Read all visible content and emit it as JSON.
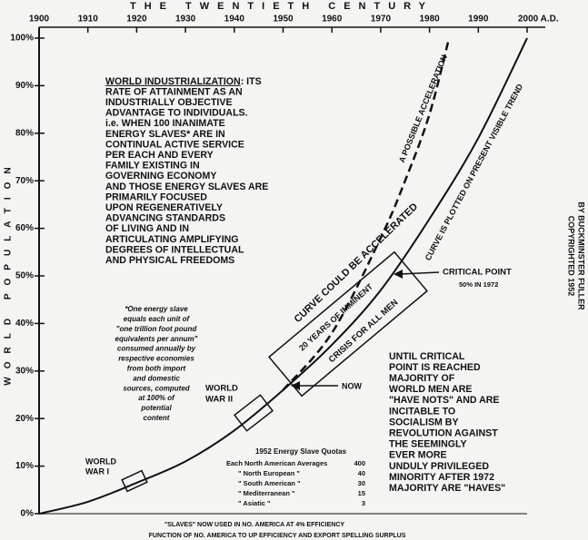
{
  "chart_data": {
    "type": "line",
    "title": "THE TWENTIETH CENTURY",
    "y_label": "WORLD POPULATION",
    "copyright": [
      "COPYRIGHTED 1952",
      "BY BUCKMINSTER FULLER"
    ],
    "xlim": [
      1900,
      2000
    ],
    "xticks": [
      1900,
      1910,
      1920,
      1930,
      1940,
      1950,
      1960,
      1970,
      1980,
      1990,
      {
        "value": 2000,
        "label": "2000 A.D."
      }
    ],
    "ylim": [
      0,
      100
    ],
    "yticks": [
      {
        "value": 0,
        "label": "0%"
      },
      {
        "value": 10,
        "label": "10%"
      },
      {
        "value": 20,
        "label": "20%"
      },
      {
        "value": 30,
        "label": "30%"
      },
      {
        "value": 40,
        "label": "40%"
      },
      {
        "value": 50,
        "label": "50%"
      },
      {
        "value": 60,
        "label": "60%"
      },
      {
        "value": 70,
        "label": "70%"
      },
      {
        "value": 80,
        "label": "80%"
      },
      {
        "value": 90,
        "label": "90%"
      },
      {
        "value": 100,
        "label": "100%"
      }
    ],
    "series": [
      {
        "name": "CURVE IS PLOTTED ON PRESENT VISIBLE TREND",
        "color": "#111111",
        "dashed": false,
        "x": [
          1900,
          1910,
          1920,
          1930,
          1940,
          1950,
          1960,
          1970,
          1980,
          1990,
          2000
        ],
        "values": [
          0,
          2.5,
          6.5,
          11,
          17.5,
          26,
          35.5,
          47,
          62,
          79,
          100
        ]
      },
      {
        "name": "A POSSIBLE ACCELERATION",
        "color": "#111111",
        "dashed": true,
        "x": [
          1950,
          1960,
          1970,
          1975,
          1980,
          1984
        ],
        "values": [
          26,
          38,
          58,
          70,
          84,
          100
        ]
      }
    ],
    "annotations": {
      "ww1": [
        "WORLD",
        "WAR I"
      ],
      "ww2": [
        "WORLD",
        "WAR II"
      ],
      "now": "NOW",
      "critical": [
        "CRITICAL POINT",
        "50% IN 1972"
      ],
      "accelerated": "CURVE COULD BE ACCELERATED",
      "crisis": [
        "20 YEARS OF IMMINENT",
        "CRISIS FOR ALL MEN"
      ],
      "main_heading": "WORLD INDUSTRIALIZATION",
      "main": [
        ": ITS",
        "RATE OF ATTAINMENT AS AN",
        "INDUSTRIALLY OBJECTIVE",
        "ADVANTAGE TO INDIVIDUALS.",
        "i.e. WHEN 100 INANIMATE",
        "ENERGY SLAVES* ARE IN",
        "CONTINUAL ACTIVE SERVICE",
        "PER EACH AND EVERY",
        "FAMILY EXISTING IN",
        "GOVERNING ECONOMY",
        "AND THOSE ENERGY SLAVES ARE",
        "PRIMARILY FOCUSED",
        "UPON REGENERATIVELY",
        "ADVANCING STANDARDS",
        "OF LIVING AND IN",
        "ARTICULATING AMPLIFYING",
        "DEGREES OF INTELLECTUAL",
        "AND PHYSICAL FREEDOMS"
      ],
      "footnote": [
        "*One energy slave",
        "equals each unit of",
        "\"one trillion foot pound",
        "equivalents per annum\"",
        "consumed annually by",
        "respective economies",
        "from both import",
        "and domestic",
        "sources, computed",
        "at 100% of",
        "potential",
        "content"
      ],
      "right": [
        "UNTIL CRITICAL",
        "POINT IS REACHED",
        "MAJORITY OF",
        "WORLD MEN ARE",
        "\"HAVE NOTS\" AND ARE",
        "INCITABLE TO",
        "SOCIALISM BY",
        "REVOLUTION AGAINST",
        "THE SEEMINGLY",
        "EVER MORE",
        "UNDULY PRIVILEGED",
        "MINORITY AFTER 1972",
        "MAJORITY ARE \"HAVES\""
      ],
      "footer": [
        "\"SLAVES\" NOW USED IN NO. AMERICA AT 4% EFFICIENCY",
        "FUNCTION OF NO. AMERICA TO UP EFFICIENCY AND EXPORT SPELLING SURPLUS"
      ]
    },
    "quota_table": {
      "title": "1952 Energy Slave Quotas",
      "rows": [
        {
          "label": "Each North American Averages",
          "value": 400
        },
        {
          "label": "\"   North European      \"",
          "value": 40
        },
        {
          "label": "\"   South American      \"",
          "value": 30
        },
        {
          "label": "\"   Mediterranean       \"",
          "value": 15
        },
        {
          "label": "\"   Asiatic                 \"",
          "value": 3
        }
      ]
    }
  }
}
